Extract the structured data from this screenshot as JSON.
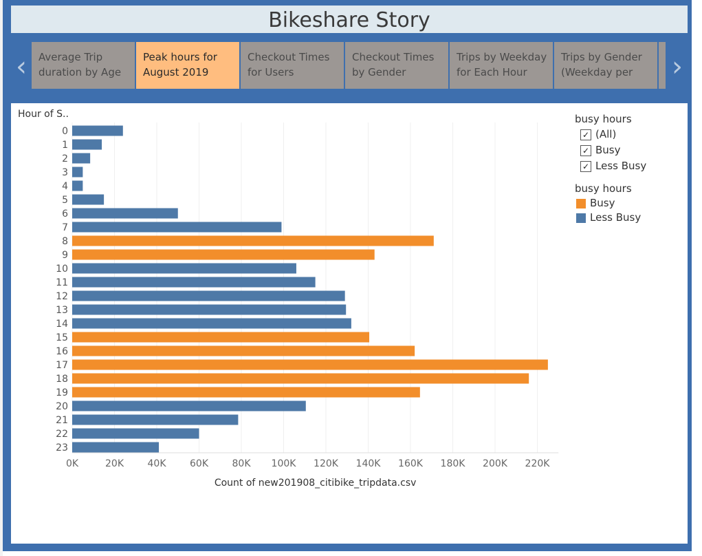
{
  "story": {
    "title": "Bikeshare Story"
  },
  "nav": {
    "prev": "‹",
    "next": "›",
    "tabs": [
      {
        "line1": "Average Trip",
        "line2": "duration by Age"
      },
      {
        "line1": "Peak hours for",
        "line2": "August 2019",
        "active": true
      },
      {
        "line1": "Checkout Times",
        "line2": "for Users"
      },
      {
        "line1": "Checkout Times",
        "line2": "by Gender"
      },
      {
        "line1": "Trips by Weekday",
        "line2": "for Each Hour"
      },
      {
        "line1": "Trips by Gender",
        "line2": "(Weekday per"
      }
    ]
  },
  "filter": {
    "title": "busy hours",
    "items": [
      {
        "label": "(All)",
        "checked": true
      },
      {
        "label": "Busy",
        "checked": true
      },
      {
        "label": "Less Busy",
        "checked": true
      }
    ]
  },
  "color_legend": {
    "title": "busy hours",
    "items": [
      {
        "label": "Busy",
        "color": "#f28e2b"
      },
      {
        "label": "Less Busy",
        "color": "#4e79a7"
      }
    ]
  },
  "chart_data": {
    "type": "bar",
    "orientation": "horizontal",
    "ylabel": "Hour of S..",
    "xlabel": "Count of new201908_citibike_tripdata.csv",
    "xlim": [
      0,
      230000
    ],
    "ticks": [
      {
        "value": 0,
        "label": "0K"
      },
      {
        "value": 20000,
        "label": "20K"
      },
      {
        "value": 40000,
        "label": "40K"
      },
      {
        "value": 60000,
        "label": "60K"
      },
      {
        "value": 80000,
        "label": "80K"
      },
      {
        "value": 100000,
        "label": "100K"
      },
      {
        "value": 120000,
        "label": "120K"
      },
      {
        "value": 140000,
        "label": "140K"
      },
      {
        "value": 160000,
        "label": "160K"
      },
      {
        "value": 180000,
        "label": "180K"
      },
      {
        "value": 200000,
        "label": "200K"
      },
      {
        "value": 220000,
        "label": "220K"
      }
    ],
    "grid": "vertical gridlines",
    "categories": [
      "0",
      "1",
      "2",
      "3",
      "4",
      "5",
      "6",
      "7",
      "8",
      "9",
      "10",
      "11",
      "12",
      "13",
      "14",
      "15",
      "16",
      "17",
      "18",
      "19",
      "20",
      "21",
      "22",
      "23"
    ],
    "values": [
      24000,
      14000,
      8500,
      5000,
      5000,
      15000,
      50000,
      99000,
      171000,
      143000,
      106000,
      115000,
      129000,
      129500,
      132000,
      140500,
      162000,
      225000,
      216000,
      164500,
      110500,
      78500,
      60000,
      41000
    ],
    "busy": [
      "Less Busy",
      "Less Busy",
      "Less Busy",
      "Less Busy",
      "Less Busy",
      "Less Busy",
      "Less Busy",
      "Less Busy",
      "Busy",
      "Busy",
      "Less Busy",
      "Less Busy",
      "Less Busy",
      "Less Busy",
      "Less Busy",
      "Busy",
      "Busy",
      "Busy",
      "Busy",
      "Busy",
      "Less Busy",
      "Less Busy",
      "Less Busy",
      "Less Busy"
    ],
    "colors": {
      "Busy": "#f28e2b",
      "Less Busy": "#4e79a7"
    }
  }
}
